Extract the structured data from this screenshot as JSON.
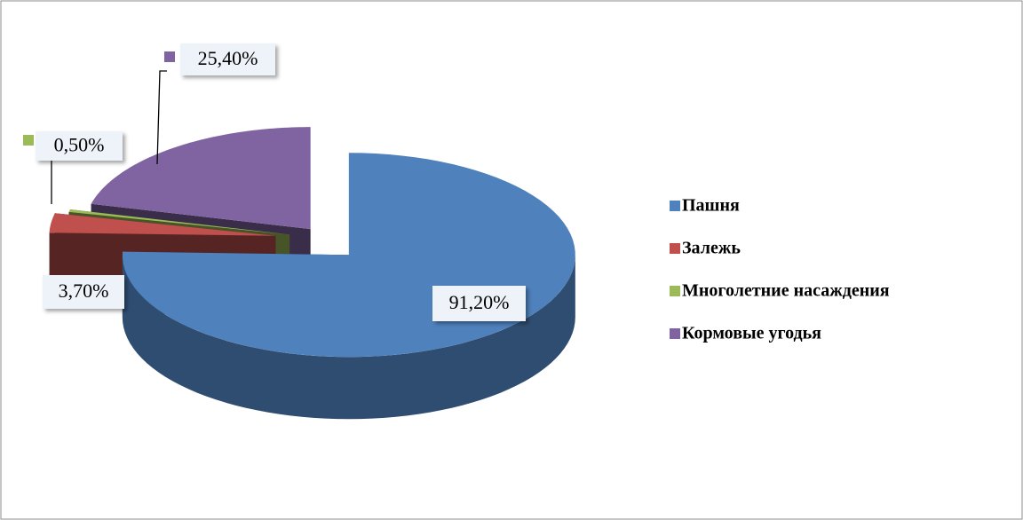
{
  "chart_data": {
    "type": "pie",
    "categories": [
      "Пашня",
      "Залежь",
      "Многолетние насаждения",
      "Кормовые угодья"
    ],
    "values": [
      91.2,
      3.7,
      0.5,
      25.4
    ],
    "value_labels": [
      "91,20%",
      "3,70%",
      "0,50%",
      "25,40%"
    ],
    "colors": [
      "#4f81bd",
      "#c0504d",
      "#9bbb59",
      "#8064a2"
    ],
    "legend": "right"
  }
}
